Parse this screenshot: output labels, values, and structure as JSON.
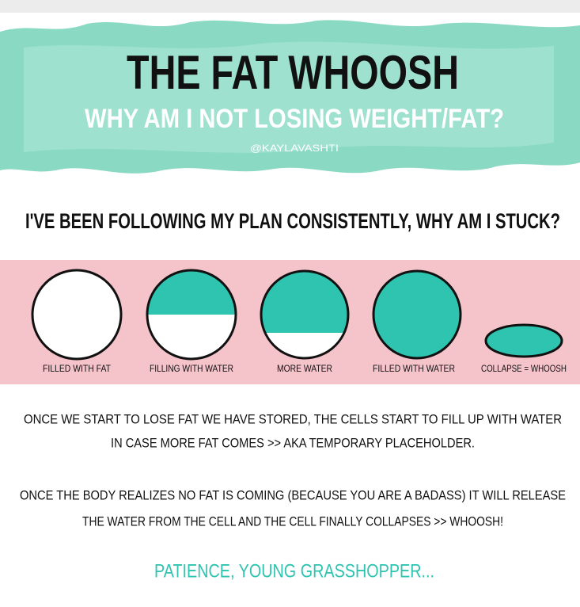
{
  "header": {
    "title": "THE FAT WHOOSH",
    "subtitle": "WHY AM I NOT LOSING WEIGHT/FAT?",
    "handle": "@KAYLAVASHTI"
  },
  "question": "I'VE BEEN FOLLOWING MY PLAN CONSISTENTLY, WHY AM I STUCK?",
  "cells": [
    {
      "label": "FILLED WITH FAT"
    },
    {
      "label": "FILLING WITH WATER"
    },
    {
      "label": "MORE WATER"
    },
    {
      "label": "FILLED WITH WATER"
    },
    {
      "label": "COLLAPSE = WHOOSH"
    }
  ],
  "paragraphs": [
    {
      "lines": [
        "ONCE WE START TO LOSE FAT WE HAVE STORED, THE CELLS START TO FILL UP WITH WATER",
        "IN CASE MORE FAT COMES >> AKA TEMPORARY PLACEHOLDER."
      ]
    },
    {
      "lines": [
        "ONCE THE BODY REALIZES NO FAT IS COMING (BECAUSE YOU ARE A BADASS) IT WILL RELEASE",
        "THE WATER FROM THE CELL AND THE CELL FINALLY COLLAPSES >> WHOOSH!"
      ]
    }
  ],
  "footer": "PATIENCE, YOUNG GRASSHOPPER..."
}
